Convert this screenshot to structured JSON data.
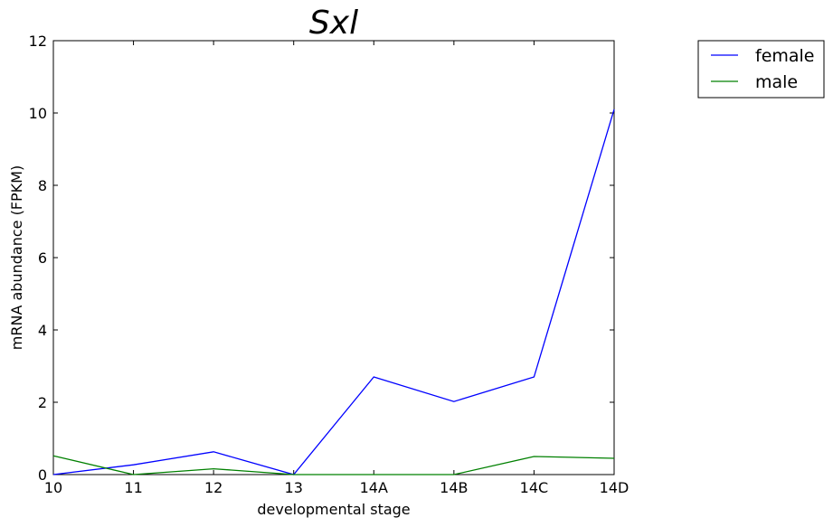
{
  "chart_data": {
    "type": "line",
    "title": "Sxl",
    "xlabel": "developmental stage",
    "ylabel": "mRNA abundance (FPKM)",
    "categories": [
      "10",
      "11",
      "12",
      "13",
      "14A",
      "14B",
      "14C",
      "14D"
    ],
    "ylim": [
      0,
      12
    ],
    "yticks": [
      0,
      2,
      4,
      6,
      8,
      10,
      12
    ],
    "grid": false,
    "legend_position": "outside-top-right",
    "series": [
      {
        "name": "female",
        "color": "#0000ff",
        "values": [
          0.0,
          0.27,
          0.63,
          0.0,
          2.7,
          2.02,
          2.7,
          10.1
        ]
      },
      {
        "name": "male",
        "color": "#008000",
        "values": [
          0.52,
          0.0,
          0.16,
          0.0,
          0.0,
          0.0,
          0.5,
          0.45
        ]
      }
    ]
  }
}
